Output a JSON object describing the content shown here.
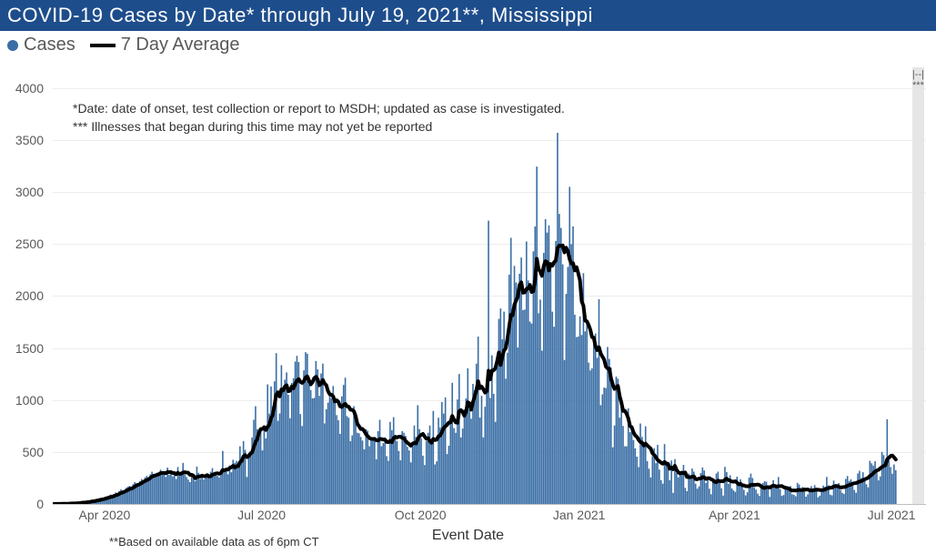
{
  "title": "COVID-19 Cases by Date* through July 19, 2021**, Mississippi",
  "legend": {
    "cases": "Cases",
    "avg": "7 Day Average"
  },
  "footnote1": "*Date: date of onset, test collection or report to MSDH; updated as case is investigated.",
  "footnote2": "*** Illnesses that began during this time may not yet be reported",
  "bottom_note": "**Based on available data as of 6pm CT",
  "x_axis_title": "Event Date",
  "colors": {
    "title_bar_bg": "#1e4d8b",
    "bar_fill": "#3a6ea5",
    "line_stroke": "#000000",
    "grid": "#ededed",
    "axis_text": "#595959",
    "shade_bg": "#e6e6e6"
  },
  "chart": {
    "type": "bar+line",
    "y_min": 0,
    "y_max": 4200,
    "y_ticks": [
      0,
      500,
      1000,
      1500,
      2000,
      2500,
      3000,
      3500,
      4000
    ],
    "x_ticks": [
      {
        "idx": 30,
        "label": "Apr 2020"
      },
      {
        "idx": 121,
        "label": "Jul 2020"
      },
      {
        "idx": 213,
        "label": "Oct 2020"
      },
      {
        "idx": 305,
        "label": "Jan 2021"
      },
      {
        "idx": 395,
        "label": "Apr 2021"
      },
      {
        "idx": 486,
        "label": "Jul 2021"
      }
    ],
    "shade_region": {
      "start_idx": 498,
      "end_idx": 505,
      "label": "|--|\n***"
    },
    "line_width": 4,
    "bar_width_ratio": 0.85,
    "n_points": 506,
    "daily_cases": [
      0,
      1,
      2,
      0,
      3,
      5,
      4,
      2,
      1,
      6,
      8,
      10,
      5,
      12,
      15,
      9,
      18,
      20,
      14,
      25,
      30,
      22,
      35,
      40,
      28,
      45,
      50,
      55,
      48,
      60,
      70,
      65,
      80,
      90,
      75,
      95,
      110,
      100,
      125,
      140,
      130,
      120,
      155,
      165,
      175,
      150,
      190,
      210,
      200,
      195,
      220,
      240,
      230,
      255,
      270,
      250,
      285,
      310,
      290,
      260,
      300,
      305,
      330,
      295,
      315,
      260,
      350,
      280,
      320,
      265,
      290,
      240,
      355,
      270,
      305,
      395,
      285,
      260,
      235,
      210,
      275,
      250,
      220,
      360,
      300,
      240,
      265,
      235,
      255,
      290,
      270,
      310,
      345,
      300,
      280,
      270,
      255,
      330,
      510,
      320,
      350,
      285,
      370,
      305,
      425,
      395,
      415,
      350,
      555,
      450,
      605,
      520,
      260,
      485,
      510,
      640,
      810,
      940,
      720,
      690,
      735,
      515,
      755,
      630,
      1150,
      870,
      1130,
      940,
      1180,
      1450,
      800,
      870,
      1335,
      1080,
      1195,
      1265,
      1050,
      825,
      1165,
      1210,
      1370,
      1425,
      1365,
      865,
      750,
      1285,
      1460,
      1445,
      1150,
      1095,
      1015,
      1020,
      1375,
      1295,
      1040,
      1255,
      1350,
      775,
      910,
      975,
      1080,
      1015,
      1135,
      1010,
      855,
      805,
      675,
      1035,
      1145,
      1215,
      845,
      830,
      605,
      660,
      940,
      830,
      685,
      680,
      645,
      610,
      525,
      720,
      705,
      555,
      625,
      640,
      615,
      430,
      700,
      810,
      555,
      585,
      640,
      460,
      415,
      790,
      710,
      835,
      665,
      603,
      510,
      420,
      700,
      685,
      655,
      550,
      515,
      400,
      555,
      755,
      645,
      950,
      720,
      630,
      465,
      375,
      605,
      685,
      755,
      605,
      895,
      380,
      410,
      830,
      735,
      980,
      870,
      1025,
      480,
      560,
      845,
      1165,
      730,
      685,
      1005,
      1250,
      640,
      725,
      910,
      1015,
      1305,
      935,
      820,
      1155,
      1095,
      1350,
      1610,
      830,
      1040,
      640,
      935,
      1190,
      2725,
      1020,
      1430,
      1060,
      790,
      1395,
      1780,
      1880,
      1585,
      1850,
      1205,
      1455,
      2205,
      2560,
      1850,
      2290,
      2130,
      1505,
      2215,
      2370,
      1865,
      1870,
      2525,
      2150,
      1755,
      1735,
      2430,
      2670,
      3245,
      1835,
      1965,
      1475,
      2415,
      2740,
      2610,
      2680,
      2275,
      1850,
      1705,
      2530,
      3570,
      2790,
      2655,
      2305,
      1385,
      2020,
      2280,
      3050,
      2500,
      2670,
      1820,
      1605,
      1610,
      1805,
      1625,
      2220,
      1660,
      1775,
      1360,
      1285,
      1305,
      1590,
      1640,
      1405,
      1970,
      950,
      1055,
      1120,
      1115,
      1510,
      1395,
      1310,
      545,
      755,
      1225,
      1205,
      830,
      955,
      750,
      555,
      555,
      920,
      690,
      745,
      615,
      535,
      455,
      355,
      774,
      645,
      555,
      747,
      413,
      339,
      255,
      459,
      536,
      393,
      569,
      331,
      229,
      195,
      576,
      413,
      398,
      229,
      418,
      107,
      431,
      297,
      256,
      315,
      289,
      376,
      155,
      123,
      293,
      255,
      341,
      311,
      195,
      147,
      169,
      297,
      351,
      322,
      203,
      248,
      147,
      93,
      245,
      237,
      293,
      311,
      207,
      151,
      81,
      357,
      307,
      194,
      276,
      149,
      131,
      116,
      262,
      193,
      238,
      170,
      136,
      83,
      113,
      253,
      292,
      249,
      162,
      139,
      100,
      79,
      174,
      201,
      219,
      214,
      150,
      68,
      156,
      229,
      179,
      165,
      259,
      142,
      78,
      86,
      175,
      169,
      131,
      172,
      94,
      88,
      74,
      203,
      187,
      122,
      163,
      141,
      70,
      92,
      150,
      171,
      139,
      181,
      157,
      64,
      80,
      144,
      177,
      165,
      260,
      179,
      90,
      83,
      225,
      193,
      183,
      201,
      135,
      107,
      97,
      241,
      269,
      221,
      237,
      197,
      135,
      108,
      293,
      319,
      250,
      305,
      247,
      189,
      160,
      415,
      391,
      369,
      412,
      321,
      227,
      265,
      501,
      470,
      408,
      815,
      420,
      355,
      291,
      380,
      325
    ]
  }
}
